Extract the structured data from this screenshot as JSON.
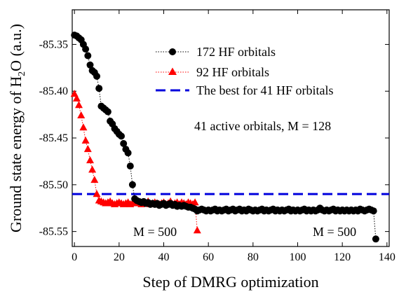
{
  "chart_data": {
    "type": "line",
    "xlabel": "Step of DMRG optimization",
    "ylabel": "Ground state energy of H2O (a.u.)",
    "ylabel_parts": {
      "pre": "Ground state energy of H",
      "sub": "2",
      "post": "O (a.u.)"
    },
    "xlim": [
      -1,
      141
    ],
    "ylim": [
      -85.566,
      -85.313
    ],
    "xticks": [
      "0",
      "20",
      "40",
      "60",
      "80",
      "100",
      "120",
      "140"
    ],
    "yticks": [
      "-85.35",
      "-85.40",
      "-85.45",
      "-85.50",
      "-85.55"
    ],
    "grid": false,
    "legend_position": "top-right",
    "series": [
      {
        "name": "172 HF orbitals",
        "marker": "circle",
        "color": "#000000",
        "line_style": "dotted",
        "points": [
          [
            0,
            -85.34
          ],
          [
            1,
            -85.341
          ],
          [
            2,
            -85.343
          ],
          [
            3,
            -85.345
          ],
          [
            4,
            -85.35
          ],
          [
            5,
            -85.355
          ],
          [
            6,
            -85.362
          ],
          [
            7,
            -85.372
          ],
          [
            8,
            -85.378
          ],
          [
            9,
            -85.38
          ],
          [
            10,
            -85.384
          ],
          [
            11,
            -85.397
          ],
          [
            12,
            -85.416
          ],
          [
            13,
            -85.418
          ],
          [
            14,
            -85.42
          ],
          [
            15,
            -85.422
          ],
          [
            16,
            -85.432
          ],
          [
            17,
            -85.435
          ],
          [
            18,
            -85.44
          ],
          [
            19,
            -85.443
          ],
          [
            20,
            -85.446
          ],
          [
            21,
            -85.448
          ],
          [
            22,
            -85.456
          ],
          [
            23,
            -85.462
          ],
          [
            24,
            -85.466
          ],
          [
            25,
            -85.48
          ],
          [
            26,
            -85.5
          ],
          [
            27,
            -85.515
          ],
          [
            28,
            -85.517
          ],
          [
            29,
            -85.518
          ],
          [
            30,
            -85.519
          ],
          [
            31,
            -85.518
          ],
          [
            32,
            -85.52
          ],
          [
            33,
            -85.519
          ],
          [
            34,
            -85.521
          ],
          [
            35,
            -85.52
          ],
          [
            36,
            -85.521
          ],
          [
            37,
            -85.52
          ],
          [
            38,
            -85.522
          ],
          [
            39,
            -85.521
          ],
          [
            40,
            -85.52
          ],
          [
            41,
            -85.522
          ],
          [
            42,
            -85.521
          ],
          [
            43,
            -85.52
          ],
          [
            44,
            -85.522
          ],
          [
            45,
            -85.521
          ],
          [
            46,
            -85.523
          ],
          [
            47,
            -85.522
          ],
          [
            48,
            -85.523
          ],
          [
            49,
            -85.522
          ],
          [
            50,
            -85.523
          ],
          [
            51,
            -85.524
          ],
          [
            52,
            -85.524
          ],
          [
            53,
            -85.525
          ],
          [
            54,
            -85.526
          ],
          [
            55,
            -85.528
          ],
          [
            56,
            -85.527
          ],
          [
            57,
            -85.526
          ],
          [
            58,
            -85.527
          ],
          [
            59,
            -85.528
          ],
          [
            60,
            -85.527
          ],
          [
            61,
            -85.528
          ],
          [
            62,
            -85.527
          ],
          [
            63,
            -85.526
          ],
          [
            64,
            -85.528
          ],
          [
            65,
            -85.527
          ],
          [
            66,
            -85.528
          ],
          [
            67,
            -85.527
          ],
          [
            68,
            -85.526
          ],
          [
            69,
            -85.528
          ],
          [
            70,
            -85.527
          ],
          [
            71,
            -85.526
          ],
          [
            72,
            -85.528
          ],
          [
            73,
            -85.527
          ],
          [
            74,
            -85.526
          ],
          [
            75,
            -85.528
          ],
          [
            76,
            -85.527
          ],
          [
            77,
            -85.528
          ],
          [
            78,
            -85.526
          ],
          [
            79,
            -85.527
          ],
          [
            80,
            -85.528
          ],
          [
            81,
            -85.527
          ],
          [
            82,
            -85.528
          ],
          [
            83,
            -85.527
          ],
          [
            84,
            -85.526
          ],
          [
            85,
            -85.528
          ],
          [
            86,
            -85.527
          ],
          [
            87,
            -85.528
          ],
          [
            88,
            -85.527
          ],
          [
            89,
            -85.526
          ],
          [
            90,
            -85.528
          ],
          [
            91,
            -85.527
          ],
          [
            92,
            -85.528
          ],
          [
            93,
            -85.527
          ],
          [
            94,
            -85.528
          ],
          [
            95,
            -85.527
          ],
          [
            96,
            -85.526
          ],
          [
            97,
            -85.528
          ],
          [
            98,
            -85.527
          ],
          [
            99,
            -85.528
          ],
          [
            100,
            -85.527
          ],
          [
            101,
            -85.528
          ],
          [
            102,
            -85.527
          ],
          [
            103,
            -85.526
          ],
          [
            104,
            -85.528
          ],
          [
            105,
            -85.527
          ],
          [
            106,
            -85.528
          ],
          [
            107,
            -85.527
          ],
          [
            108,
            -85.528
          ],
          [
            109,
            -85.527
          ],
          [
            110,
            -85.525
          ],
          [
            111,
            -85.527
          ],
          [
            112,
            -85.528
          ],
          [
            113,
            -85.527
          ],
          [
            114,
            -85.528
          ],
          [
            115,
            -85.527
          ],
          [
            116,
            -85.526
          ],
          [
            117,
            -85.528
          ],
          [
            118,
            -85.527
          ],
          [
            119,
            -85.528
          ],
          [
            120,
            -85.527
          ],
          [
            121,
            -85.528
          ],
          [
            122,
            -85.527
          ],
          [
            123,
            -85.528
          ],
          [
            124,
            -85.527
          ],
          [
            125,
            -85.528
          ],
          [
            126,
            -85.527
          ],
          [
            127,
            -85.528
          ],
          [
            128,
            -85.526
          ],
          [
            129,
            -85.527
          ],
          [
            130,
            -85.528
          ],
          [
            131,
            -85.527
          ],
          [
            132,
            -85.526
          ],
          [
            133,
            -85.527
          ],
          [
            134,
            -85.528
          ],
          [
            135,
            -85.558
          ]
        ]
      },
      {
        "name": "92 HF orbitals",
        "marker": "triangle",
        "color": "#ff0000",
        "line_style": "dotted",
        "points": [
          [
            0,
            -85.403
          ],
          [
            1,
            -85.408
          ],
          [
            2,
            -85.415
          ],
          [
            3,
            -85.426
          ],
          [
            4,
            -85.439
          ],
          [
            5,
            -85.453
          ],
          [
            6,
            -85.462
          ],
          [
            7,
            -85.474
          ],
          [
            8,
            -85.484
          ],
          [
            9,
            -85.495
          ],
          [
            10,
            -85.51
          ],
          [
            11,
            -85.517
          ],
          [
            12,
            -85.518
          ],
          [
            13,
            -85.519
          ],
          [
            14,
            -85.52
          ],
          [
            15,
            -85.519
          ],
          [
            16,
            -85.518
          ],
          [
            17,
            -85.52
          ],
          [
            18,
            -85.521
          ],
          [
            19,
            -85.52
          ],
          [
            20,
            -85.519
          ],
          [
            21,
            -85.52
          ],
          [
            22,
            -85.521
          ],
          [
            23,
            -85.52
          ],
          [
            24,
            -85.519
          ],
          [
            25,
            -85.521
          ],
          [
            26,
            -85.52
          ],
          [
            27,
            -85.519
          ],
          [
            28,
            -85.518
          ],
          [
            29,
            -85.52
          ],
          [
            30,
            -85.521
          ],
          [
            31,
            -85.519
          ],
          [
            32,
            -85.52
          ],
          [
            33,
            -85.518
          ],
          [
            34,
            -85.521
          ],
          [
            35,
            -85.52
          ],
          [
            36,
            -85.519
          ],
          [
            37,
            -85.52
          ],
          [
            38,
            -85.521
          ],
          [
            39,
            -85.52
          ],
          [
            40,
            -85.519
          ],
          [
            41,
            -85.521
          ],
          [
            42,
            -85.52
          ],
          [
            43,
            -85.518
          ],
          [
            44,
            -85.521
          ],
          [
            45,
            -85.52
          ],
          [
            46,
            -85.519
          ],
          [
            47,
            -85.521
          ],
          [
            48,
            -85.519
          ],
          [
            49,
            -85.52
          ],
          [
            50,
            -85.521
          ],
          [
            51,
            -85.519
          ],
          [
            52,
            -85.52
          ],
          [
            53,
            -85.521
          ],
          [
            54,
            -85.519
          ],
          [
            55,
            -85.549
          ]
        ]
      }
    ],
    "reference_line": {
      "name": "The best for 41 HF orbitals",
      "y": -85.51,
      "color": "#0000dd",
      "line_style": "dashed"
    },
    "annotations": [
      {
        "text": "41 active orbitals, M = 128"
      },
      {
        "text": "M = 500",
        "near_series": "92 HF orbitals"
      },
      {
        "text": "M = 500",
        "near_series": "172 HF orbitals"
      }
    ]
  }
}
